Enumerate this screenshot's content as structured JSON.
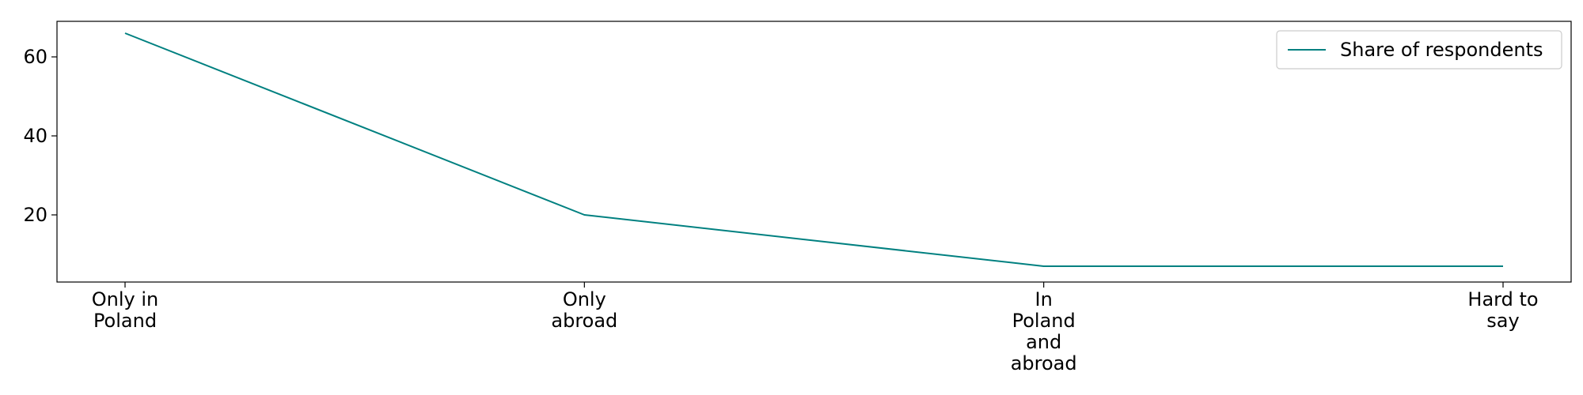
{
  "chart_data": {
    "type": "line",
    "title": "",
    "xlabel": "",
    "ylabel": "",
    "categories": [
      [
        "Only in",
        "Poland"
      ],
      [
        "Only",
        "abroad"
      ],
      [
        "In",
        "Poland",
        "and",
        "abroad"
      ],
      [
        "Hard to",
        "say"
      ]
    ],
    "series": [
      {
        "name": "Share of respondents",
        "values": [
          66,
          20,
          7,
          7
        ],
        "color": "#008080"
      }
    ],
    "yticks": [
      20,
      40,
      60
    ],
    "ylim": [
      3,
      69
    ],
    "grid": false,
    "legend": {
      "position": "top-right"
    }
  }
}
